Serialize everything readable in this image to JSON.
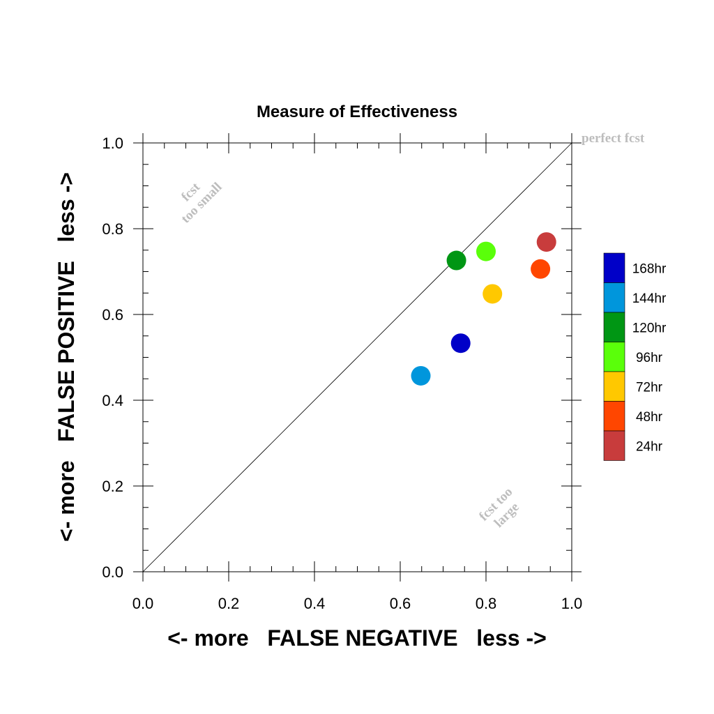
{
  "chart_data": {
    "type": "scatter",
    "title": "Measure of Effectiveness",
    "xlabel": "<- more   FALSE NEGATIVE   less ->",
    "ylabel": "<- more   FALSE POSITIVE   less ->",
    "xlim": [
      0,
      1
    ],
    "ylim": [
      0,
      1
    ],
    "xticks": [
      "0.0",
      "0.2",
      "0.4",
      "0.6",
      "0.8",
      "1.0"
    ],
    "yticks": [
      "0.0",
      "0.2",
      "0.4",
      "0.6",
      "0.8",
      "1.0"
    ],
    "reference_line": "diagonal y = x",
    "grid": false,
    "legend_placement": "right",
    "series": [
      {
        "name": "168hr",
        "color": "#0000c8",
        "x": 0.741,
        "y": 0.533
      },
      {
        "name": "144hr",
        "color": "#0096dc",
        "x": 0.648,
        "y": 0.457
      },
      {
        "name": "120hr",
        "color": "#009614",
        "x": 0.731,
        "y": 0.726
      },
      {
        "name": "96hr",
        "color": "#5aff0a",
        "x": 0.8,
        "y": 0.747
      },
      {
        "name": "72hr",
        "color": "#ffc800",
        "x": 0.815,
        "y": 0.648
      },
      {
        "name": "48hr",
        "color": "#ff4600",
        "x": 0.927,
        "y": 0.706
      },
      {
        "name": "24hr",
        "color": "#c83c3c",
        "x": 0.941,
        "y": 0.769
      }
    ],
    "legend_order": [
      "168hr",
      "144hr",
      "120hr",
      "96hr",
      "72hr",
      "48hr",
      "24hr"
    ],
    "annotations": {
      "perfect": "perfect fcst",
      "too_small": [
        "fcst",
        "too small"
      ],
      "too_large": [
        "fcst too",
        "large"
      ]
    }
  }
}
